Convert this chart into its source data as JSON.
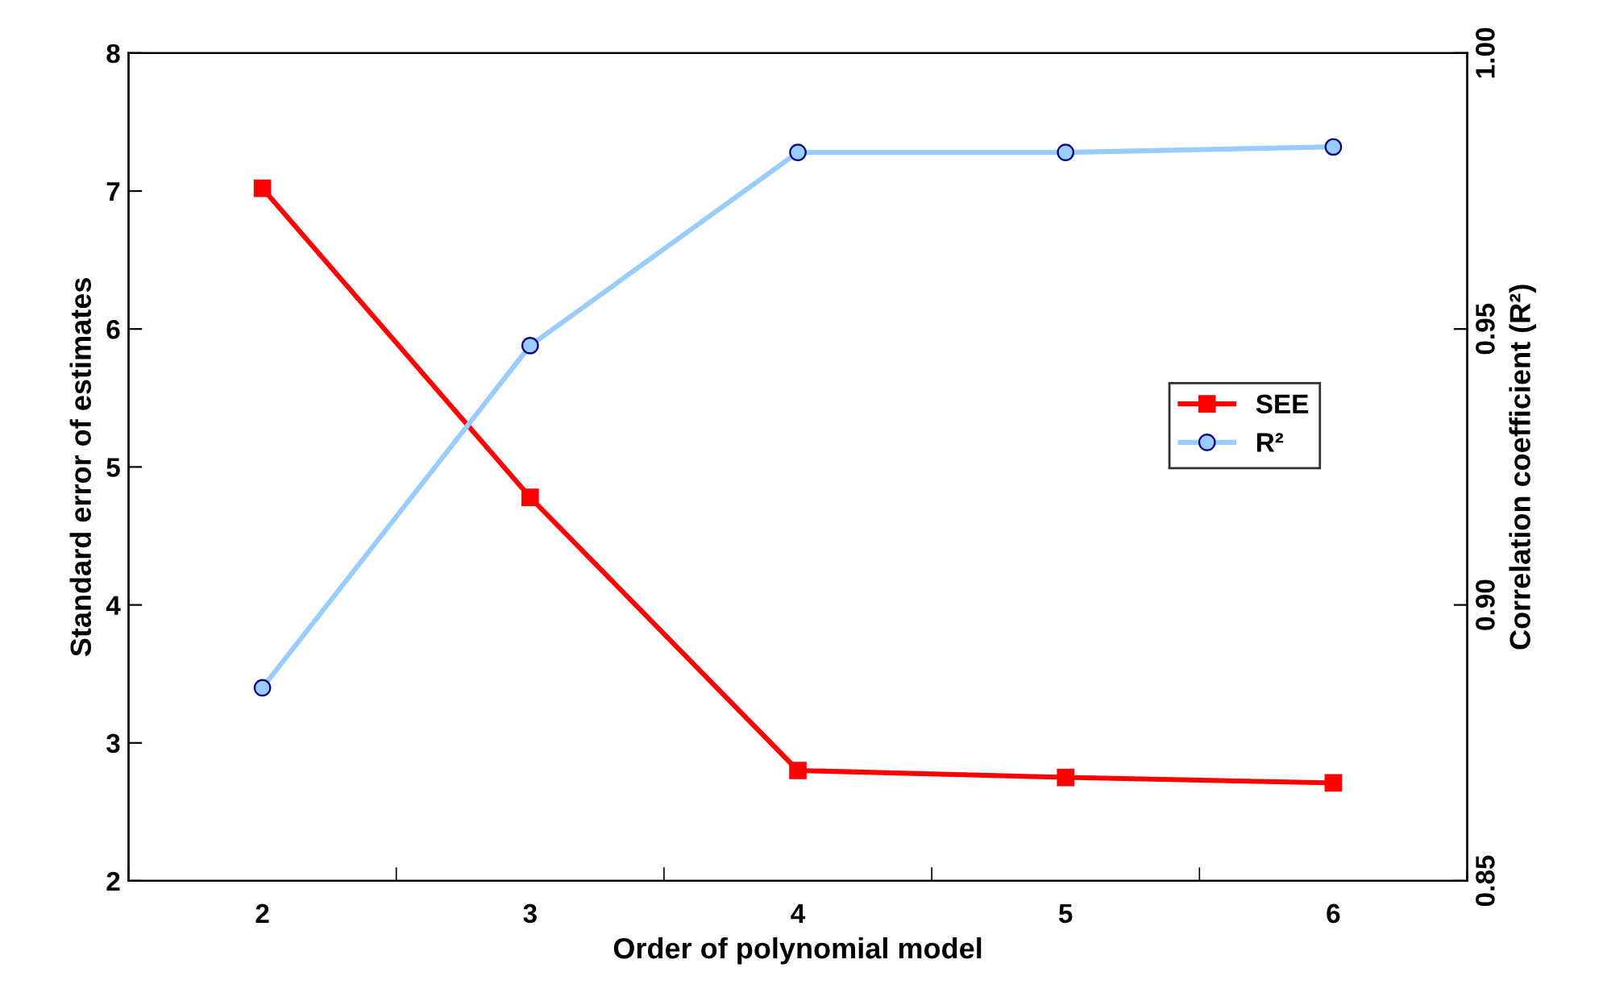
{
  "chart_data": {
    "type": "line",
    "xlabel": "Order of polynomial model",
    "ylabel": "Standard error of estimates",
    "y2label": "Correlation coefficient (R²)",
    "categories": [
      "2",
      "3",
      "4",
      "5",
      "6"
    ],
    "series": [
      {
        "name": "SEE",
        "color": "#ff0000",
        "marker": "square",
        "values": [
          7.02,
          4.78,
          2.8,
          2.75,
          2.71
        ]
      },
      {
        "name": "R²",
        "color": "#99ccff",
        "marker": "circle",
        "axis": "y2",
        "values": [
          0.885,
          0.947,
          0.982,
          0.982,
          0.983
        ]
      }
    ],
    "ylim": [
      2,
      8
    ],
    "yticks": [
      2,
      3,
      4,
      5,
      6,
      7,
      8
    ],
    "y2lim": [
      0.85,
      1.0
    ],
    "y2ticks": [
      {
        "value": 0.85,
        "label": "0.85"
      },
      {
        "value": 0.9,
        "label": "0.90"
      },
      {
        "value": 0.95,
        "label": "0.95"
      },
      {
        "value": 1.0,
        "label": "1.00"
      }
    ],
    "grid": false,
    "legend": "right",
    "line_style": "solid"
  }
}
